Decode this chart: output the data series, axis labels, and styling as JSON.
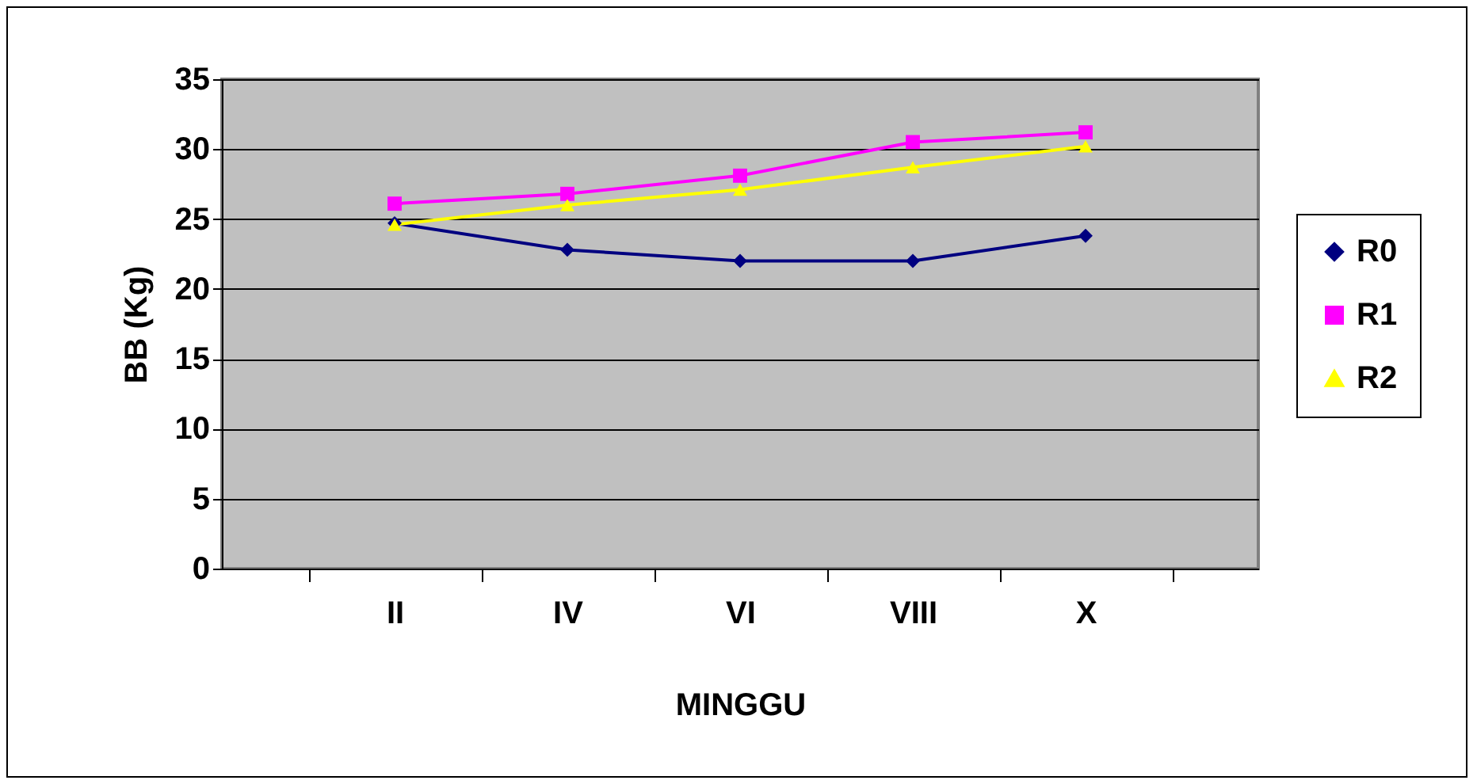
{
  "chart_data": {
    "type": "line",
    "xlabel": "MINGGU",
    "ylabel": "BB (Kg)",
    "categories": [
      "II",
      "IV",
      "VI",
      "VIII",
      "X"
    ],
    "series": [
      {
        "name": "R0",
        "color": "#000080",
        "marker": "diamond",
        "values": [
          24.7,
          22.8,
          22.0,
          22.0,
          23.8
        ]
      },
      {
        "name": "R1",
        "color": "#ff00ff",
        "marker": "square",
        "values": [
          26.1,
          26.8,
          28.1,
          30.5,
          31.2
        ]
      },
      {
        "name": "R2",
        "color": "#ffff00",
        "marker": "triangle",
        "values": [
          24.6,
          26.0,
          27.1,
          28.7,
          30.2
        ]
      }
    ],
    "ylim": [
      0,
      35
    ],
    "yticks": [
      0,
      5,
      10,
      15,
      20,
      25,
      30,
      35
    ],
    "grid": "y",
    "legend": "right"
  }
}
